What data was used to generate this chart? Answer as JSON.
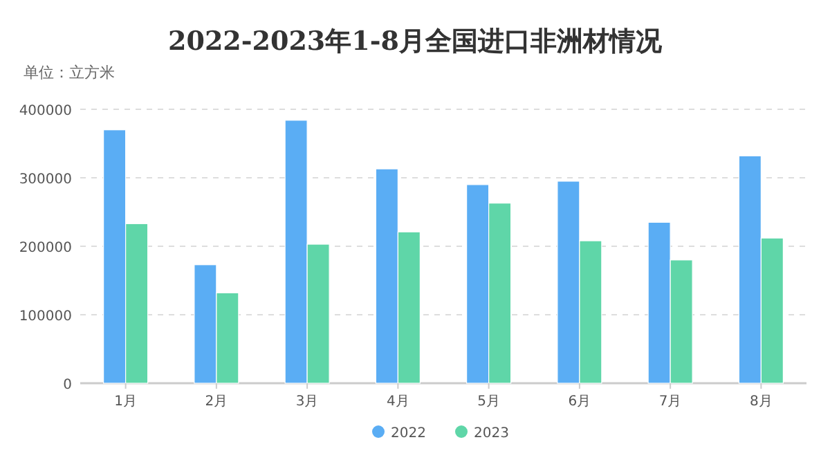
{
  "chart_data": {
    "type": "bar",
    "title": "2022-2023年1-8月全国进口非洲材情况",
    "ylabel": "单位：立方米",
    "categories": [
      "1月",
      "2月",
      "3月",
      "4月",
      "5月",
      "6月",
      "7月",
      "8月"
    ],
    "series": [
      {
        "name": "2022",
        "color": "#5aadf4",
        "values": [
          370000,
          173000,
          384000,
          313000,
          290000,
          295000,
          235000,
          332000
        ]
      },
      {
        "name": "2023",
        "color": "#5fd6a8",
        "values": [
          233000,
          132000,
          203000,
          221000,
          263000,
          208000,
          180000,
          212000
        ]
      }
    ],
    "ylim": [
      0,
      400000
    ],
    "yticks": [
      0,
      100000,
      200000,
      300000,
      400000
    ],
    "grid": "y",
    "legend": "bottom"
  }
}
